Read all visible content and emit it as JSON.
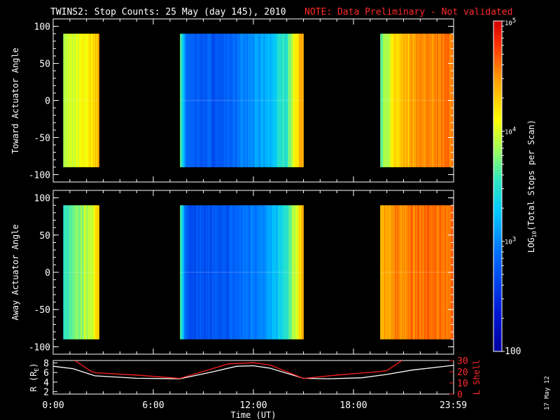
{
  "header": {
    "title": "TWINS2: Stop Counts: 25 May (day 145), 2010",
    "note": "NOTE: Data Preliminary - Not validated"
  },
  "stamp": "17 May 12",
  "colors": {
    "note": "#ff2a2a",
    "l_shell": "#ff2020",
    "r_line": "#ffffff"
  },
  "chart_data": [
    {
      "type": "heatmap",
      "ylabel": "Toward Actuator Angle",
      "ylim": [
        -110,
        110
      ],
      "yticks": [
        -100,
        -50,
        0,
        50,
        100
      ],
      "y_extent": [
        -90,
        90
      ],
      "xlim_hours": [
        0,
        24
      ],
      "coverage_hours": [
        [
          0.6,
          2.75
        ],
        [
          7.6,
          15.0
        ],
        [
          19.6,
          24
        ]
      ],
      "level_log10": [
        {
          "t": 0.6,
          "v": 3.9
        },
        {
          "t": 1.5,
          "v": 4.0
        },
        {
          "t": 2.3,
          "v": 4.2
        },
        {
          "t": 2.75,
          "v": 4.4
        },
        {
          "t": 7.6,
          "v": 3.8
        },
        {
          "t": 8.0,
          "v": 2.8
        },
        {
          "t": 10.0,
          "v": 2.75
        },
        {
          "t": 11.5,
          "v": 2.95
        },
        {
          "t": 13.0,
          "v": 3.2
        },
        {
          "t": 14.0,
          "v": 3.6
        },
        {
          "t": 14.6,
          "v": 4.2
        },
        {
          "t": 15.0,
          "v": 4.5
        },
        {
          "t": 19.6,
          "v": 3.7
        },
        {
          "t": 20.5,
          "v": 4.2
        },
        {
          "t": 22.0,
          "v": 4.5
        },
        {
          "t": 24.0,
          "v": 4.6
        }
      ]
    },
    {
      "type": "heatmap",
      "ylabel": "Away Actuator Angle",
      "ylim": [
        -110,
        110
      ],
      "yticks": [
        -100,
        -50,
        0,
        50,
        100
      ],
      "y_extent": [
        -90,
        90
      ],
      "xlim_hours": [
        0,
        24
      ],
      "coverage_hours": [
        [
          0.6,
          2.75
        ],
        [
          7.6,
          15.0
        ],
        [
          19.6,
          24
        ]
      ],
      "level_log10": [
        {
          "t": 0.6,
          "v": 3.5
        },
        {
          "t": 1.5,
          "v": 3.75
        },
        {
          "t": 2.3,
          "v": 4.0
        },
        {
          "t": 2.75,
          "v": 4.3
        },
        {
          "t": 7.6,
          "v": 3.6
        },
        {
          "t": 8.0,
          "v": 2.75
        },
        {
          "t": 10.0,
          "v": 2.7
        },
        {
          "t": 11.5,
          "v": 2.9
        },
        {
          "t": 13.0,
          "v": 3.1
        },
        {
          "t": 14.0,
          "v": 3.5
        },
        {
          "t": 14.6,
          "v": 4.0
        },
        {
          "t": 15.0,
          "v": 4.4
        },
        {
          "t": 19.6,
          "v": 4.4
        },
        {
          "t": 20.5,
          "v": 4.5
        },
        {
          "t": 22.0,
          "v": 4.6
        },
        {
          "t": 24.0,
          "v": 4.6
        }
      ]
    },
    {
      "type": "line",
      "xlabel": "Time (UT)",
      "ylabel": "R (R",
      "ylabel_sub": "E",
      "ylabel_end": ")",
      "ylim": [
        1.5,
        8.5
      ],
      "yticks": [
        2,
        4,
        6,
        8
      ],
      "y2label": "L Shell",
      "y2lim": [
        0,
        30
      ],
      "y2ticks": [
        0,
        10,
        20,
        30
      ],
      "xlim_hours": [
        0,
        24
      ],
      "xticks": [
        {
          "h": 0,
          "label": "0:00"
        },
        {
          "h": 6,
          "label": "6:00"
        },
        {
          "h": 12,
          "label": "12:00"
        },
        {
          "h": 18,
          "label": "18:00"
        },
        {
          "h": 23.98,
          "label": "23:59"
        }
      ],
      "series": [
        {
          "axis": "left",
          "points": [
            [
              0,
              7.3
            ],
            [
              1.2,
              6.8
            ],
            [
              2.5,
              5.3
            ],
            [
              5.0,
              4.8
            ],
            [
              7.6,
              4.7
            ],
            [
              9.5,
              6.1
            ],
            [
              11.0,
              7.3
            ],
            [
              12.0,
              7.4
            ],
            [
              13.0,
              6.9
            ],
            [
              15.0,
              4.8
            ],
            [
              16.5,
              4.7
            ],
            [
              18.5,
              4.9
            ],
            [
              20.0,
              5.6
            ],
            [
              21.5,
              6.5
            ],
            [
              23.0,
              7.1
            ],
            [
              24.0,
              7.5
            ]
          ]
        },
        {
          "axis": "right",
          "points": [
            [
              1.3,
              30
            ],
            [
              2.3,
              20
            ],
            [
              2.6,
              19
            ],
            [
              5.0,
              17
            ],
            [
              7.6,
              14
            ],
            [
              10.5,
              27
            ],
            [
              12.0,
              28
            ],
            [
              13.0,
              26
            ],
            [
              15.0,
              14
            ],
            [
              17.0,
              17
            ],
            [
              19.5,
              20
            ],
            [
              20.0,
              21
            ],
            [
              20.9,
              30
            ]
          ]
        }
      ]
    }
  ],
  "colorbar": {
    "label_pre": "LOG",
    "label_sub": "10",
    "label_post": "(Total Stops per Scan)",
    "range_log10": [
      2,
      5
    ],
    "ticks": [
      {
        "v": 5,
        "base": "10",
        "exp": "5"
      },
      {
        "v": 4,
        "base": "10",
        "exp": "4"
      },
      {
        "v": 3,
        "base": "10",
        "exp": "3"
      },
      {
        "v": 2,
        "base": "100",
        "exp": ""
      }
    ]
  }
}
